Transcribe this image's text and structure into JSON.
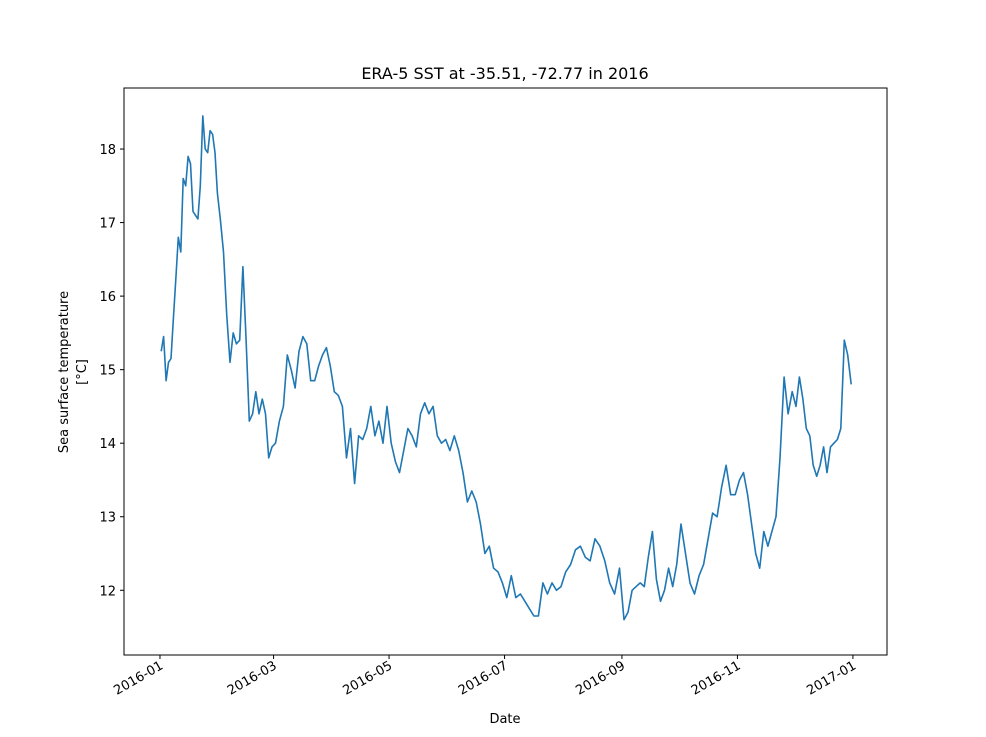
{
  "chart_data": {
    "type": "line",
    "title": "ERA-5 SST at -35.51, -72.77 in 2016",
    "xlabel": "Date",
    "ylabel": [
      "Sea surface temperature",
      "[°C]"
    ],
    "color": "#1f77b4",
    "xlim": [
      "2015-12-13",
      "2017-01-19"
    ],
    "xticks": [
      "2016-01",
      "2016-03",
      "2016-05",
      "2016-07",
      "2016-09",
      "2016-11",
      "2017-01"
    ],
    "ylim": [
      11.12,
      18.83
    ],
    "yticks": [
      12,
      13,
      14,
      15,
      16,
      17,
      18
    ],
    "x": [
      "2016-01",
      "2016-01",
      "2016-01",
      "2016-01",
      "2016-01",
      "2016-01",
      "2016-01",
      "2016-01",
      "2016-01",
      "2016-01",
      "2016-01",
      "2016-01",
      "2016-01",
      "2016-01",
      "2016-01",
      "2016-01",
      "2016-01",
      "2016-01",
      "2016-01",
      "2016-01",
      "2016-01",
      "2016-01",
      "2016-01",
      "2016-01",
      "2016-02",
      "2016-02",
      "2016-02",
      "2016-02",
      "2016-02",
      "2016-02",
      "2016-02",
      "2016-02",
      "2016-02",
      "2016-02",
      "2016-02",
      "2016-02",
      "2016-02",
      "2016-02",
      "2016-02",
      "2016-02",
      "2016-02",
      "2016-03",
      "2016-03",
      "2016-03",
      "2016-03",
      "2016-03",
      "2016-03",
      "2016-03",
      "2016-03",
      "2016-03",
      "2016-03",
      "2016-03",
      "2016-03",
      "2016-03",
      "2016-03",
      "2016-03",
      "2016-04",
      "2016-04",
      "2016-04",
      "2016-04",
      "2016-04",
      "2016-04",
      "2016-04",
      "2016-04",
      "2016-04",
      "2016-04",
      "2016-04",
      "2016-04",
      "2016-04",
      "2016-04",
      "2016-05",
      "2016-05",
      "2016-05",
      "2016-05",
      "2016-05",
      "2016-05",
      "2016-05",
      "2016-05",
      "2016-05",
      "2016-05",
      "2016-05",
      "2016-05",
      "2016-05",
      "2016-05",
      "2016-06",
      "2016-06",
      "2016-06",
      "2016-06",
      "2016-06",
      "2016-06",
      "2016-06",
      "2016-06",
      "2016-06",
      "2016-06",
      "2016-06",
      "2016-06",
      "2016-06",
      "2016-07",
      "2016-07",
      "2016-07",
      "2016-07",
      "2016-07",
      "2016-07",
      "2016-07",
      "2016-07",
      "2016-07",
      "2016-07",
      "2016-07",
      "2016-07",
      "2016-07",
      "2016-08",
      "2016-08",
      "2016-08",
      "2016-08",
      "2016-08",
      "2016-08",
      "2016-08",
      "2016-08",
      "2016-08",
      "2016-08",
      "2016-08",
      "2016-08",
      "2016-09",
      "2016-09",
      "2016-09",
      "2016-09",
      "2016-09",
      "2016-09",
      "2016-09",
      "2016-09",
      "2016-09",
      "2016-09",
      "2016-09",
      "2016-09",
      "2016-09",
      "2016-09",
      "2016-10",
      "2016-10",
      "2016-10",
      "2016-10",
      "2016-10",
      "2016-10",
      "2016-10",
      "2016-10",
      "2016-10",
      "2016-10",
      "2016-10",
      "2016-10",
      "2016-10",
      "2016-11",
      "2016-11",
      "2016-11",
      "2016-11",
      "2016-11",
      "2016-11",
      "2016-11",
      "2016-11",
      "2016-11",
      "2016-11",
      "2016-11",
      "2016-11",
      "2016-11",
      "2016-11",
      "2016-12",
      "2016-12",
      "2016-12",
      "2016-12",
      "2016-12",
      "2016-12",
      "2016-12",
      "2016-12",
      "2016-12",
      "2016-12",
      "2016-12",
      "2016-12",
      "2016-12",
      "2016-12",
      "2016-12",
      "2016-12",
      "2016-12"
    ],
    "values": [
      15.25,
      15.45,
      14.85,
      15.1,
      15.15,
      15.7,
      16.25,
      16.8,
      16.6,
      17.6,
      17.5,
      17.9,
      17.8,
      17.15,
      17.1,
      17.05,
      17.5,
      18.45,
      18.0,
      17.95,
      18.25,
      18.2,
      17.95,
      17.4,
      17.05,
      16.6,
      15.75,
      15.1,
      15.5,
      15.35,
      15.4,
      16.4,
      15.4,
      14.3,
      14.4,
      14.7,
      14.4,
      14.6,
      14.4,
      13.8,
      13.95,
      14.0,
      14.3,
      14.5,
      15.2,
      15.0,
      14.75,
      15.25,
      15.45,
      15.35,
      14.85,
      14.85,
      15.05,
      15.2,
      15.3,
      15.05,
      14.7,
      14.65,
      14.5,
      13.8,
      14.2,
      13.45,
      14.1,
      14.05,
      14.2,
      14.5,
      14.1,
      14.3,
      14.0,
      14.5,
      14.0,
      13.75,
      13.6,
      13.9,
      14.2,
      14.1,
      13.95,
      14.4,
      14.55,
      14.4,
      14.5,
      14.1,
      14.0,
      14.05,
      13.9,
      14.1,
      13.9,
      13.6,
      13.2,
      13.35,
      13.2,
      12.9,
      12.5,
      12.6,
      12.3,
      12.25,
      12.1,
      11.9,
      12.2,
      11.9,
      11.95,
      11.85,
      11.75,
      11.65,
      11.65,
      12.1,
      11.95,
      12.1,
      12.0,
      12.05,
      12.25,
      12.35,
      12.55,
      12.6,
      12.45,
      12.4,
      12.7,
      12.6,
      12.4,
      12.1,
      11.95,
      12.3,
      11.6,
      11.7,
      12.0,
      12.05,
      12.1,
      12.05,
      12.45,
      12.8,
      12.15,
      11.85,
      12.0,
      12.3,
      12.05,
      12.35,
      12.9,
      12.5,
      12.1,
      11.95,
      12.2,
      12.35,
      12.7,
      13.05,
      13.0,
      13.4,
      13.7,
      13.3,
      13.3,
      13.5,
      13.6,
      13.3,
      12.9,
      12.5,
      12.3,
      12.8,
      12.6,
      12.8,
      13.0,
      13.8,
      14.9,
      14.4,
      14.7,
      14.5,
      14.9,
      14.6,
      14.2,
      14.1,
      13.7,
      13.55,
      13.7,
      13.95,
      13.6,
      13.95,
      14.0,
      14.05,
      14.2,
      15.4,
      15.2,
      14.8
    ]
  }
}
